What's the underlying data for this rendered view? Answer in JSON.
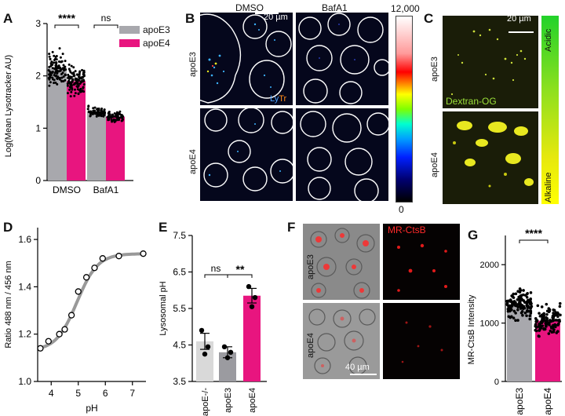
{
  "panels": {
    "A": {
      "letter": "A",
      "chart_data": {
        "type": "bar",
        "categories": [
          "DMSO",
          "BafA1"
        ],
        "series": [
          {
            "name": "apoE3",
            "values": [
              2.15,
              1.32
            ],
            "color": "#a8a8ad"
          },
          {
            "name": "apoE4",
            "values": [
              1.9,
              1.22
            ],
            "color": "#e8157f"
          }
        ],
        "ylabel": "Log(Mean Lysotracker AU)",
        "ylim": [
          0,
          3
        ],
        "yticks": [
          "0",
          "1",
          "2",
          "3"
        ],
        "legend_position": "top-right",
        "annotations": [
          "****",
          "ns"
        ]
      }
    },
    "B": {
      "letter": "B",
      "col_labels": [
        "DMSO",
        "BafA1"
      ],
      "row_labels": [
        "apoE3",
        "apoE4"
      ],
      "scalebar": "20 µm",
      "probe_label": "LyTr",
      "colorbar_max": "12,000",
      "colorbar_min": "0"
    },
    "C": {
      "letter": "C",
      "row_labels": [
        "apoE3",
        "apoE4"
      ],
      "scalebar": "20 µm",
      "probe_label": "Dextran-OG",
      "scale_top": "Acidic",
      "scale_bottom": "Alkaline"
    },
    "D": {
      "letter": "D",
      "chart_data": {
        "type": "line",
        "x": [
          3.6,
          3.9,
          4.3,
          4.5,
          4.75,
          5.0,
          5.3,
          5.6,
          5.9,
          6.5,
          7.4
        ],
        "y": [
          1.14,
          1.17,
          1.2,
          1.22,
          1.28,
          1.38,
          1.44,
          1.48,
          1.52,
          1.53,
          1.54
        ],
        "xlabel": "pH",
        "ylabel": "Ratio 488 nm / 456 nm",
        "xlim": [
          3.5,
          7.5
        ],
        "ylim": [
          1.0,
          1.65
        ],
        "xticks": [
          "4",
          "5",
          "6",
          "7"
        ],
        "yticks": [
          "1.0",
          "1.2",
          "1.4",
          "1.6"
        ]
      }
    },
    "E": {
      "letter": "E",
      "chart_data": {
        "type": "bar",
        "categories": [
          "apoE-/-",
          "apoE3",
          "apoE4"
        ],
        "values": [
          4.6,
          4.3,
          5.85
        ],
        "errors": [
          0.22,
          0.15,
          0.2
        ],
        "points": [
          [
            4.9,
            4.45,
            4.25
          ],
          [
            4.45,
            4.3,
            4.15
          ],
          [
            6.1,
            5.8,
            5.55
          ]
        ],
        "colors": [
          "#d9d9d9",
          "#9b9ba0",
          "#e8157f"
        ],
        "ylabel": "Lysosomal pH",
        "ylim": [
          3.5,
          7.5
        ],
        "yticks": [
          "3.5",
          "4.5",
          "5.5",
          "6.5",
          "7.5"
        ],
        "annotations": [
          "ns",
          "**"
        ]
      }
    },
    "F": {
      "letter": "F",
      "row_labels": [
        "apoE3",
        "apoE4"
      ],
      "probe_label": "MR-CtsB",
      "scalebar": "40 µm"
    },
    "G": {
      "letter": "G",
      "chart_data": {
        "type": "bar",
        "categories": [
          "apoE3",
          "apoE4"
        ],
        "values": [
          1310,
          1040
        ],
        "colors": [
          "#a8a8ad",
          "#e8157f"
        ],
        "ylabel": "MR-CtsB Intensity",
        "ylim": [
          0,
          2500
        ],
        "yticks": [
          "0",
          "1000",
          "2000"
        ],
        "annotations": [
          "****"
        ]
      }
    }
  }
}
